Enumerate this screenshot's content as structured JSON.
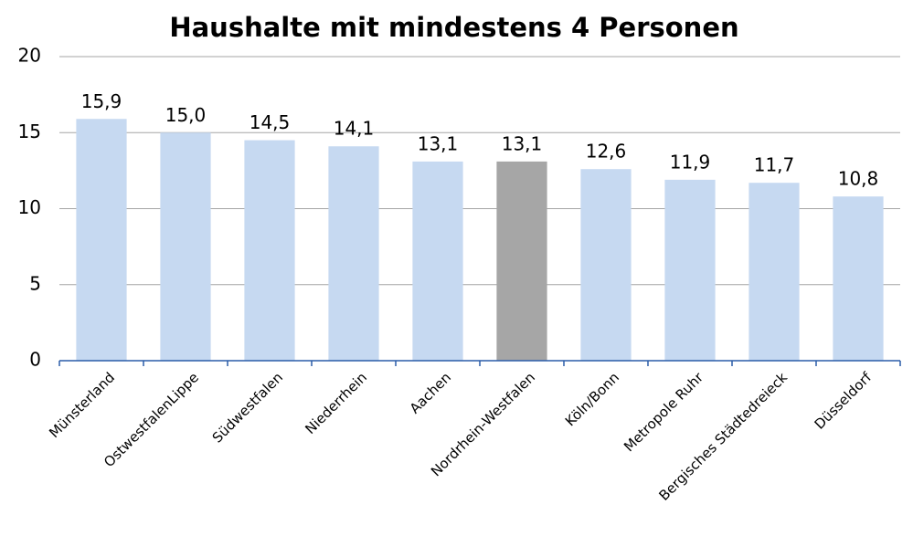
{
  "chart_data": {
    "type": "bar",
    "title": "Haushalte mit mindestens 4 Personen",
    "categories": [
      "Münsterland",
      "OstwestfalenLippe",
      "Südwestfalen",
      "Niederrhein",
      "Aachen",
      "Nordrhein-Westfalen",
      "Köln/Bonn",
      "Metropole Ruhr",
      "Bergisches Städtedreieck",
      "Düsseldorf"
    ],
    "values": [
      15.9,
      15.0,
      14.5,
      14.1,
      13.1,
      13.1,
      12.6,
      11.9,
      11.7,
      10.8
    ],
    "value_labels": [
      "15,9",
      "15,0",
      "14,5",
      "14,1",
      "13,1",
      "13,1",
      "12,6",
      "11,9",
      "11,7",
      "10,8"
    ],
    "colors": [
      "#c6d9f1",
      "#c6d9f1",
      "#c6d9f1",
      "#c6d9f1",
      "#c6d9f1",
      "#a6a6a6",
      "#c6d9f1",
      "#c6d9f1",
      "#c6d9f1",
      "#c6d9f1"
    ],
    "ylim": [
      0,
      20
    ],
    "yticks": [
      0,
      5,
      10,
      15,
      20
    ],
    "grid": true
  }
}
